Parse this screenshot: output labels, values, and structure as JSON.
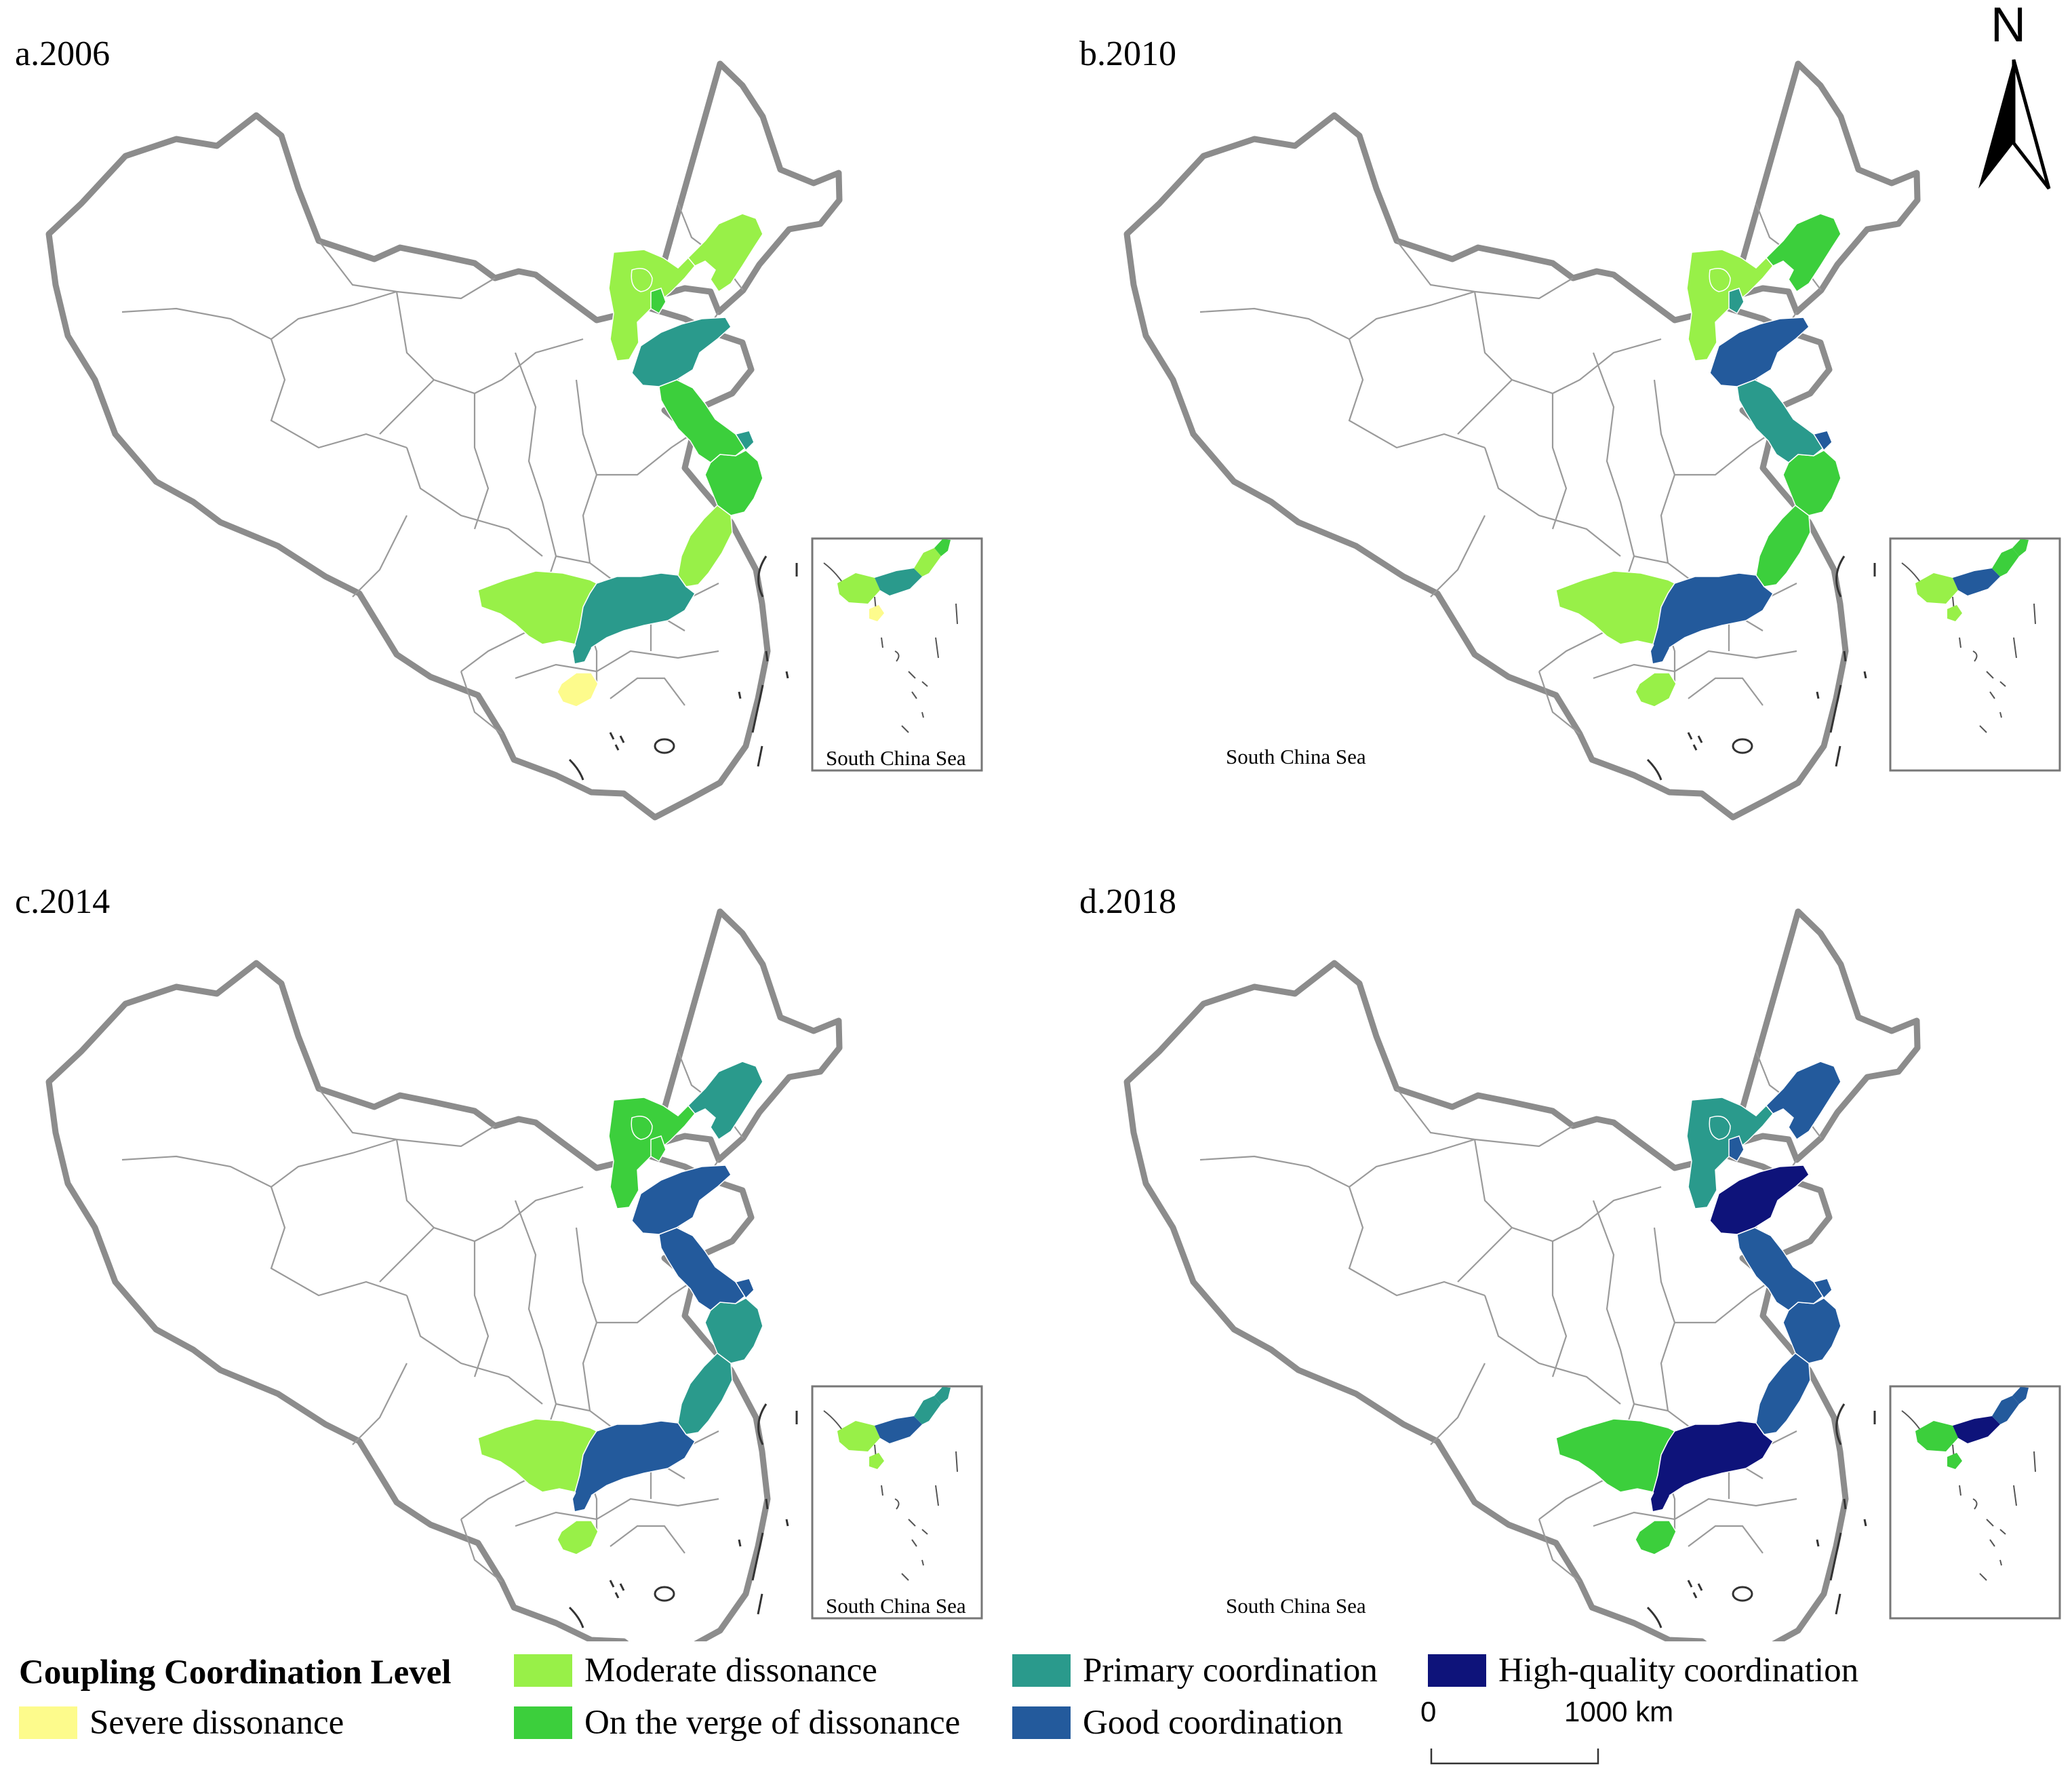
{
  "panels": [
    {
      "title": "a.2006",
      "provinces": {
        "liaoning": "moderate",
        "beijing": "moderate",
        "tianjin": "verge",
        "hebei": "moderate",
        "shandong": "primary",
        "jiangsu": "verge",
        "shanghai": "primary",
        "zhejiang": "verge",
        "fujian": "moderate",
        "guangdong": "primary",
        "guangxi": "moderate",
        "hainan": "severe"
      }
    },
    {
      "title": "b.2010",
      "provinces": {
        "liaoning": "verge",
        "beijing": "moderate",
        "tianjin": "primary",
        "hebei": "moderate",
        "shandong": "good",
        "jiangsu": "primary",
        "shanghai": "good",
        "zhejiang": "verge",
        "fujian": "verge",
        "guangdong": "good",
        "guangxi": "moderate",
        "hainan": "moderate"
      }
    },
    {
      "title": "c.2014",
      "provinces": {
        "liaoning": "primary",
        "beijing": "verge",
        "tianjin": "verge",
        "hebei": "verge",
        "shandong": "good",
        "jiangsu": "good",
        "shanghai": "good",
        "zhejiang": "primary",
        "fujian": "primary",
        "guangdong": "good",
        "guangxi": "moderate",
        "hainan": "moderate"
      }
    },
    {
      "title": "d.2018",
      "provinces": {
        "liaoning": "good",
        "beijing": "primary",
        "tianjin": "good",
        "hebei": "primary",
        "shandong": "high",
        "jiangsu": "good",
        "shanghai": "good",
        "zhejiang": "good",
        "fujian": "good",
        "guangdong": "high",
        "guangxi": "verge",
        "hainan": "verge"
      }
    }
  ],
  "inset_label": "South China Sea",
  "legend": {
    "title": "Coupling Coordination Level",
    "items": [
      {
        "key": "severe",
        "label": "Severe dissonance",
        "color": "#fdfb8c"
      },
      {
        "key": "moderate",
        "label": "Moderate dissonance",
        "color": "#98f048"
      },
      {
        "key": "verge",
        "label": "On the verge of dissonance",
        "color": "#3ccf3c"
      },
      {
        "key": "primary",
        "label": "Primary coordination",
        "color": "#2a9a8c"
      },
      {
        "key": "good",
        "label": "Good coordination",
        "color": "#235a9c"
      },
      {
        "key": "high",
        "label": "High-quality coordination",
        "color": "#0e137a"
      }
    ]
  },
  "north_arrow": {
    "label": "N"
  },
  "scale_bar": {
    "start": "0",
    "end": "1000 km"
  }
}
